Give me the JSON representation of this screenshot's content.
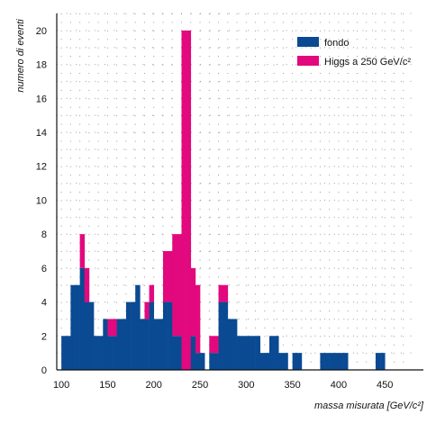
{
  "chart_data": {
    "type": "bar",
    "stacked": true,
    "bin_width": 5,
    "x": [
      100,
      105,
      110,
      115,
      120,
      125,
      130,
      135,
      140,
      145,
      150,
      155,
      160,
      165,
      170,
      175,
      180,
      185,
      190,
      195,
      200,
      205,
      210,
      215,
      220,
      225,
      230,
      235,
      240,
      245,
      250,
      255,
      260,
      265,
      270,
      275,
      280,
      285,
      290,
      295,
      300,
      305,
      310,
      315,
      320,
      325,
      330,
      335,
      340,
      345,
      350,
      355,
      360,
      365,
      370,
      375,
      380,
      385,
      390,
      395,
      400,
      405,
      410,
      415,
      420,
      425,
      430,
      435,
      440,
      445,
      450,
      455,
      460,
      465,
      470,
      475
    ],
    "series": [
      {
        "name": "fondo",
        "color": "#0a4a93",
        "values": [
          2,
          2,
          5,
          5,
          6,
          4,
          4,
          2,
          2,
          3,
          2,
          2,
          3,
          3,
          4,
          4,
          5,
          3,
          3,
          4,
          3,
          3,
          4,
          4,
          2,
          2,
          0,
          0,
          2,
          1,
          1,
          0,
          1,
          1,
          4,
          4,
          3,
          3,
          2,
          2,
          2,
          2,
          2,
          1,
          1,
          2,
          2,
          1,
          1,
          0,
          1,
          1,
          0,
          0,
          0,
          0,
          1,
          1,
          1,
          1,
          1,
          1,
          0,
          0,
          0,
          0,
          0,
          0,
          1,
          1,
          0,
          0,
          0,
          0,
          0,
          0
        ]
      },
      {
        "name": "Higgs a 250 GeV/c²",
        "color": "#e2087d",
        "values": [
          0,
          0,
          0,
          0,
          2,
          2,
          0,
          0,
          0,
          0,
          1,
          1,
          0,
          0,
          0,
          0,
          0,
          0,
          1,
          1,
          0,
          0,
          3,
          3,
          6,
          6,
          20,
          20,
          4,
          4,
          0,
          0,
          1,
          1,
          1,
          1,
          0,
          0,
          0,
          0,
          0,
          0,
          0,
          0,
          0,
          0,
          0,
          0,
          0,
          0,
          0,
          0,
          0,
          0,
          0,
          0,
          0,
          0,
          0,
          0,
          0,
          0,
          0,
          0,
          0,
          0,
          0,
          0,
          0,
          0,
          0,
          0,
          0,
          0,
          0,
          0
        ]
      }
    ],
    "xlim": [
      100,
      480
    ],
    "ylim": [
      0,
      21
    ],
    "x_ticks": [
      100,
      150,
      200,
      250,
      300,
      350,
      400,
      450
    ],
    "y_ticks": [
      0,
      2,
      4,
      6,
      8,
      10,
      12,
      14,
      16,
      18,
      20
    ],
    "xlabel": "massa misurata [GeV/c²]",
    "ylabel": "numero di eventi",
    "grid": "dotted",
    "legend_position": "top-right"
  }
}
